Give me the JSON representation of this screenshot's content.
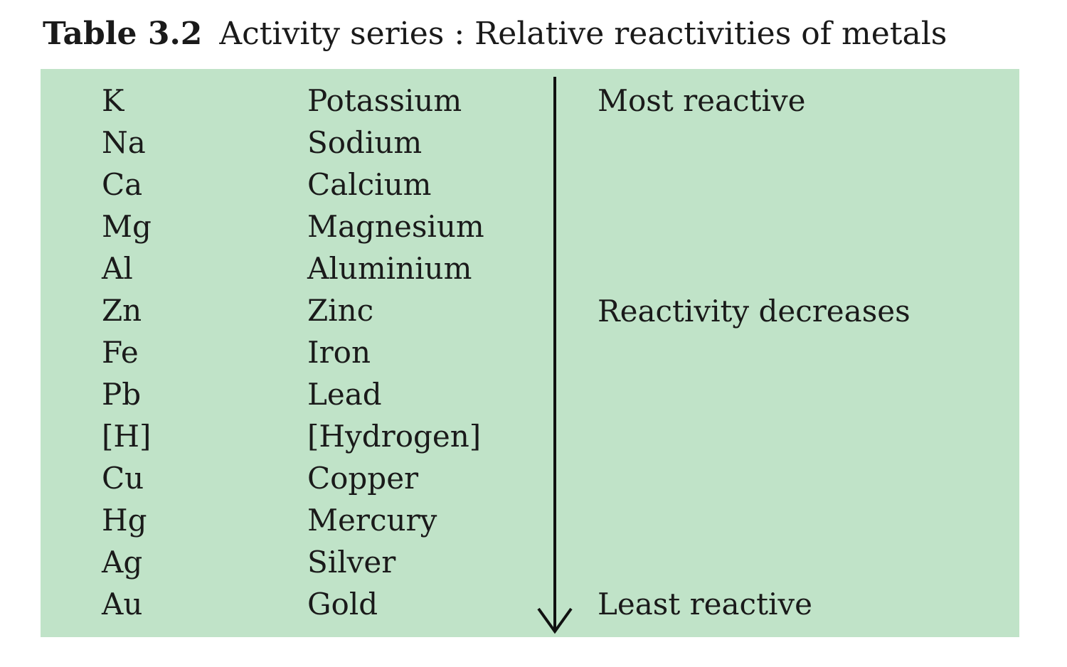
{
  "header": {
    "label": "Table 3.2",
    "title": "Activity series : Relative reactivities of metals"
  },
  "table": {
    "rows": [
      [
        "K",
        "Potassium"
      ],
      [
        "Na",
        "Sodium"
      ],
      [
        "Ca",
        "Calcium"
      ],
      [
        "Mg",
        "Magnesium"
      ],
      [
        "Al",
        "Aluminium"
      ],
      [
        "Zn",
        "Zinc"
      ],
      [
        "Fe",
        "Iron"
      ],
      [
        "Pb",
        "Lead"
      ],
      [
        "[H]",
        "[Hydrogen]"
      ],
      [
        "Cu",
        "Copper"
      ],
      [
        "Hg",
        "Mercury"
      ],
      [
        "Ag",
        "Silver"
      ],
      [
        "Au",
        "Gold"
      ]
    ]
  },
  "annotations": {
    "top": "Most reactive",
    "middle": "Reactivity decreases",
    "bottom": "Least reactive"
  }
}
